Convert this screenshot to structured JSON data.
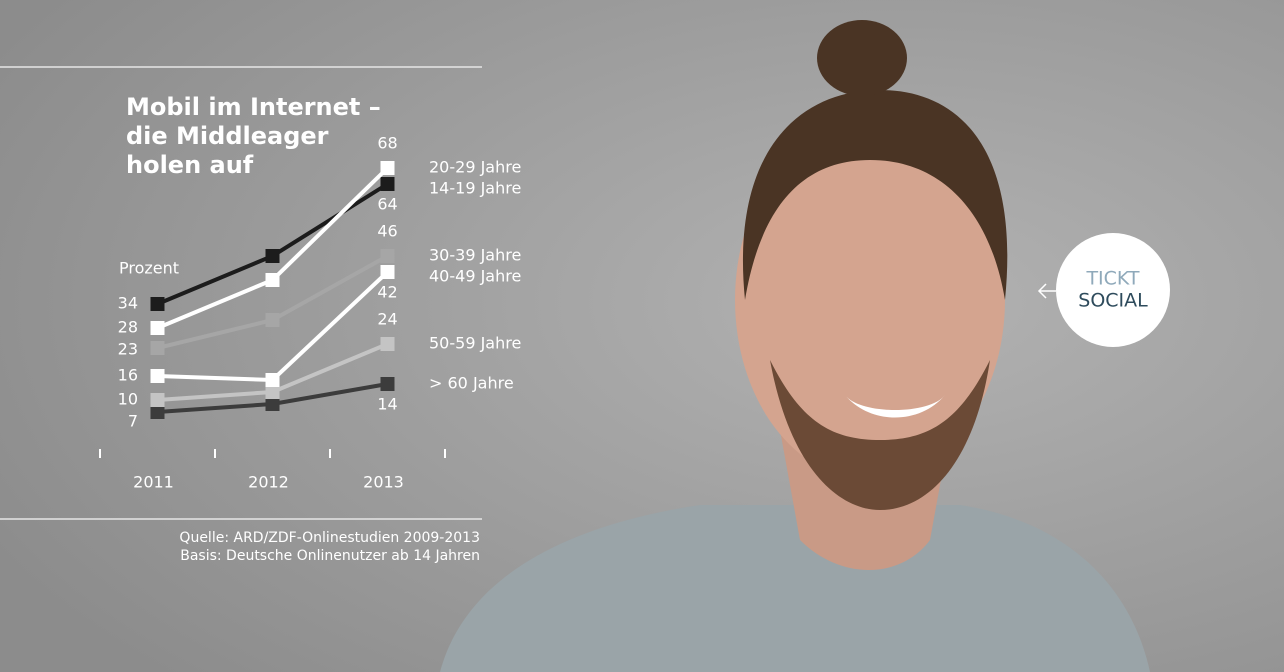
{
  "chart_data": {
    "type": "line",
    "title": [
      "Mobil im Internet –",
      "die Middleager",
      "holen auf"
    ],
    "y_label": "Prozent",
    "categories": [
      "2011",
      "2012",
      "2013"
    ],
    "ylim": [
      0,
      75
    ],
    "series": [
      {
        "name": "20-29 Jahre",
        "color": "#ffffff",
        "values": [
          28,
          40,
          68
        ]
      },
      {
        "name": "14-19 Jahre",
        "color": "#1c1c1c",
        "values": [
          34,
          46,
          64
        ]
      },
      {
        "name": "30-39 Jahre",
        "color": "#a6a6a6",
        "values": [
          23,
          30,
          46
        ]
      },
      {
        "name": "40-49 Jahre",
        "color": "#ffffff",
        "values": [
          16,
          15,
          42
        ]
      },
      {
        "name": "50-59 Jahre",
        "color": "#c4c4c4",
        "values": [
          10,
          12,
          24
        ]
      },
      {
        "name": "> 60 Jahre",
        "color": "#3c3c3c",
        "values": [
          7,
          9,
          14
        ]
      }
    ],
    "notes": [
      "Quelle: ARD/ZDF-Onlinestudien 2009-2013",
      "Basis: Deutsche Onlinenutzer ab 14 Jahren"
    ]
  },
  "badge": [
    "TICKT",
    "SOCIAL"
  ]
}
